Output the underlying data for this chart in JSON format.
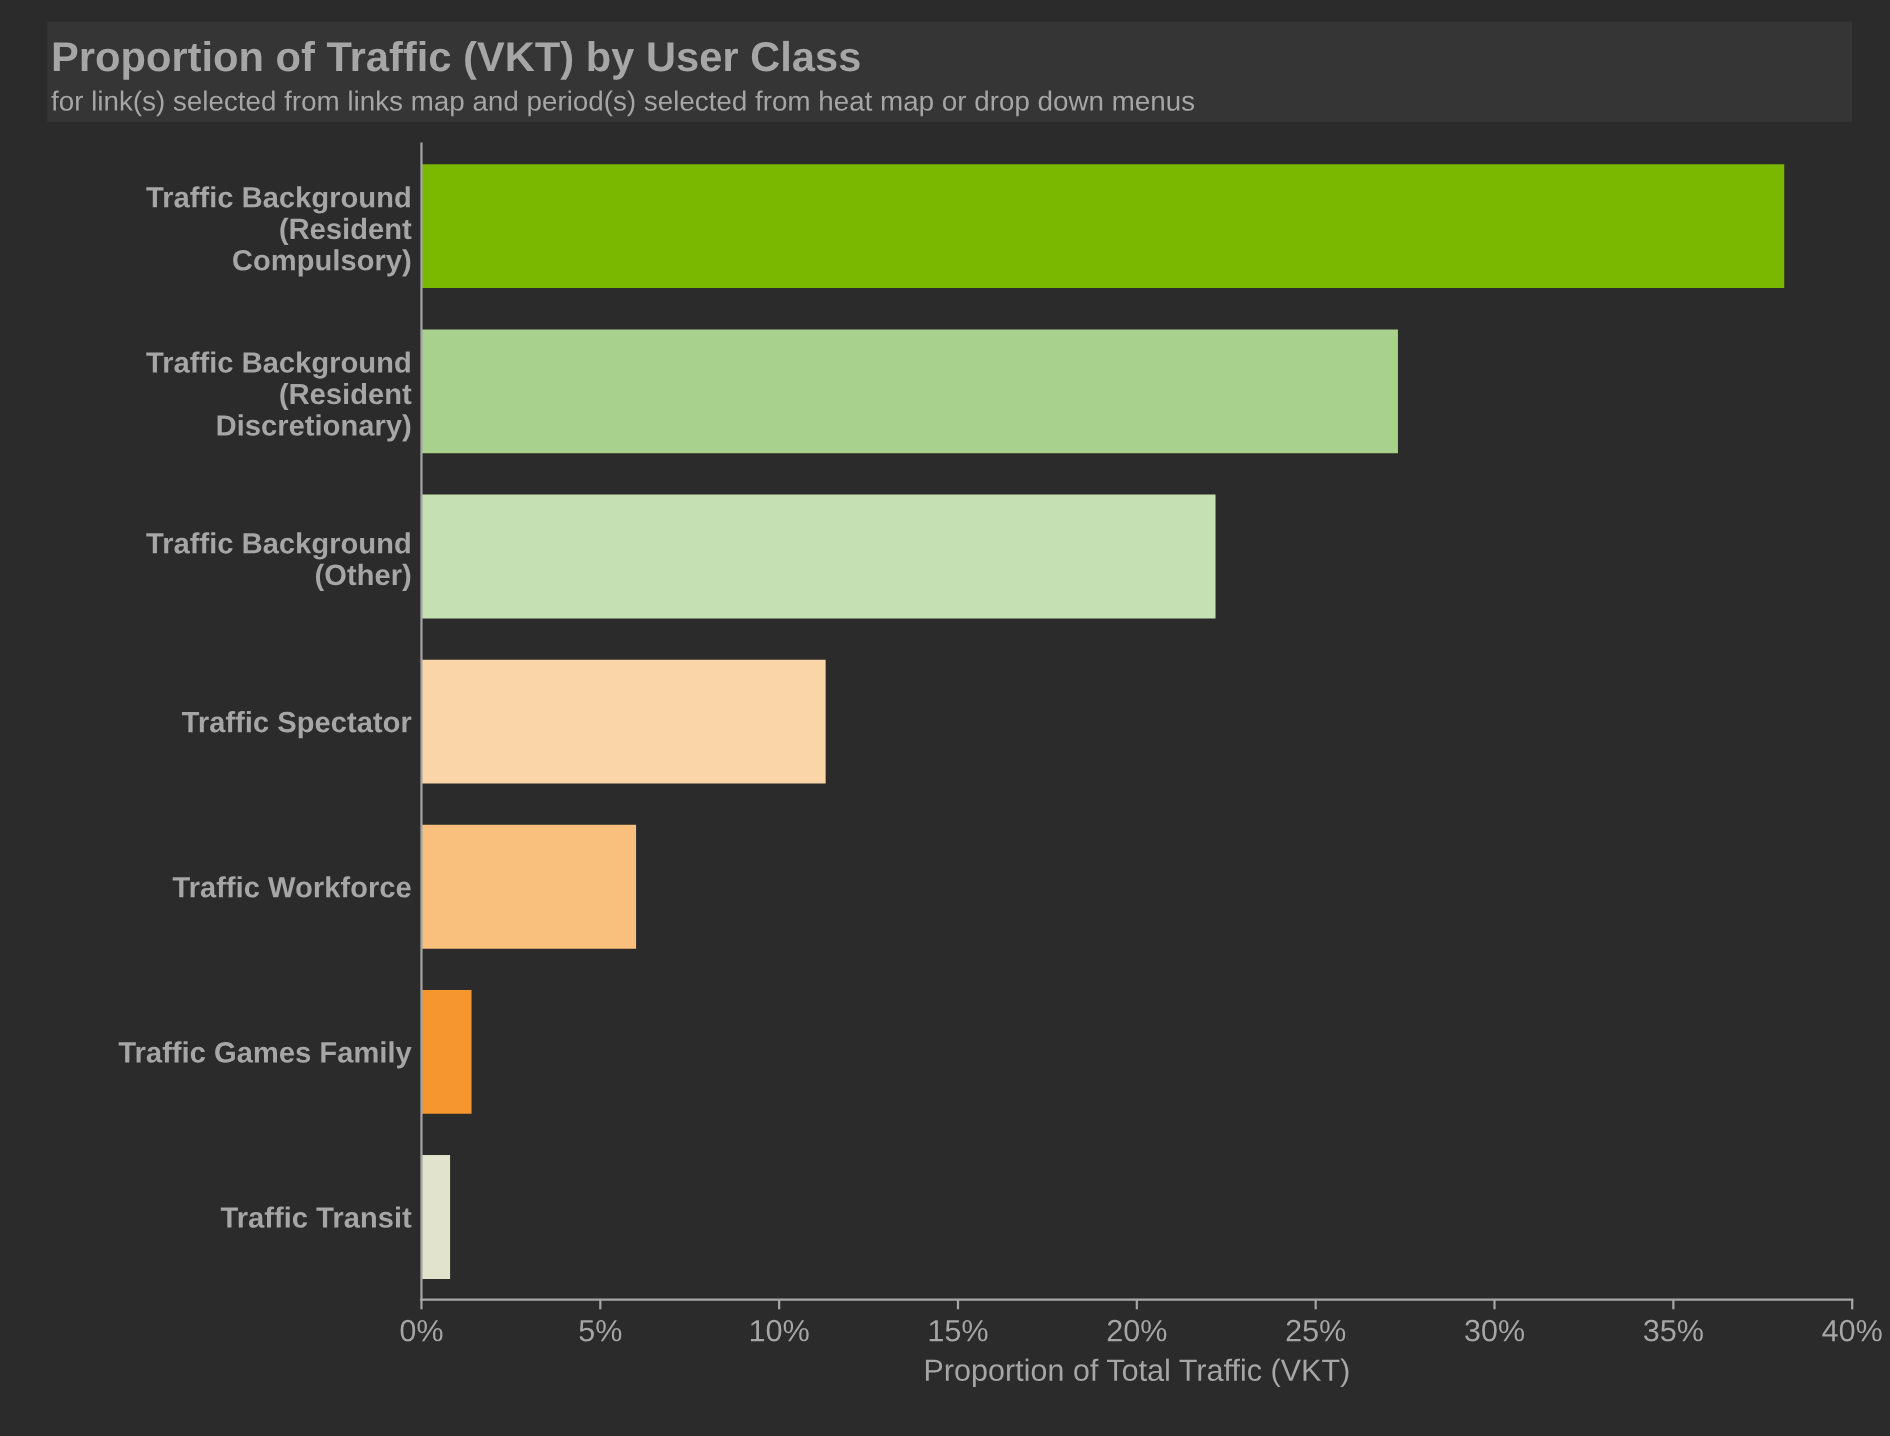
{
  "chart_data": {
    "type": "bar",
    "orientation": "horizontal",
    "title": "Proportion of Traffic (VKT) by User Class",
    "subtitle": "for link(s) selected from links map and period(s) selected from heat map or drop down menus",
    "xlabel": "Proportion of Total Traffic (VKT)",
    "categories": [
      "Traffic Background\n(Resident\nCompulsory)",
      "Traffic Background\n(Resident\nDiscretionary)",
      "Traffic Background\n(Other)",
      "Traffic Spectator",
      "Traffic Workforce",
      "Traffic Games Family",
      "Traffic Transit"
    ],
    "values": [
      38.1,
      27.3,
      22.2,
      11.3,
      6.0,
      1.4,
      0.8
    ],
    "colors": [
      "#7ab800",
      "#a9d18e",
      "#c5e0b3",
      "#fad5a8",
      "#f8bf7d",
      "#f5962f",
      "#e2e3cd"
    ],
    "xlim": [
      0,
      40
    ],
    "xticks": [
      {
        "value": 0,
        "label": "0%"
      },
      {
        "value": 5,
        "label": "5%"
      },
      {
        "value": 10,
        "label": "10%"
      },
      {
        "value": 15,
        "label": "15%"
      },
      {
        "value": 20,
        "label": "20%"
      },
      {
        "value": 25,
        "label": "25%"
      },
      {
        "value": 30,
        "label": "30%"
      },
      {
        "value": 35,
        "label": "35%"
      },
      {
        "value": 40,
        "label": "40%"
      }
    ],
    "grid": false,
    "legend": false
  }
}
